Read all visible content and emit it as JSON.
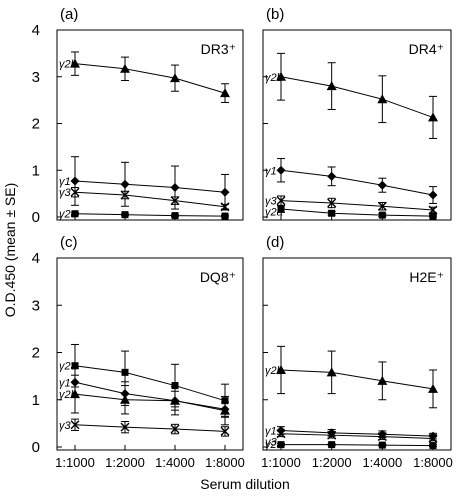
{
  "figure": {
    "ylabel": "O.D.450 (mean ± SE)",
    "xlabel": "Serum dilution"
  },
  "chart_data": [
    {
      "type": "line",
      "panel": "(a)",
      "title": "DR3⁺",
      "categories": [
        "1:1000",
        "1:2000",
        "1:4000",
        "1:8000"
      ],
      "ylim": [
        0,
        4
      ],
      "yticks": [
        "0",
        "1",
        "2",
        "3",
        "4"
      ],
      "xlabel": "Serum dilution",
      "ylabel": "O.D.450 (mean ± SE)",
      "series": [
        {
          "name": "γ2b",
          "marker": "triangle",
          "values": [
            3.28,
            3.17,
            2.97,
            2.65
          ],
          "errors": [
            0.25,
            0.25,
            0.28,
            0.2
          ]
        },
        {
          "name": "γ1",
          "marker": "diamond",
          "values": [
            0.77,
            0.7,
            0.63,
            0.53
          ],
          "errors": [
            0.52,
            0.47,
            0.46,
            0.38
          ]
        },
        {
          "name": "γ3",
          "marker": "x",
          "values": [
            0.53,
            0.47,
            0.35,
            0.22
          ],
          "errors": [
            0.1,
            0.08,
            0.08,
            0.05
          ]
        },
        {
          "name": "γ2a",
          "marker": "square",
          "values": [
            0.07,
            0.05,
            0.03,
            0.02
          ],
          "errors": [
            0.02,
            0.02,
            0.02,
            0.02
          ]
        }
      ]
    },
    {
      "type": "line",
      "panel": "(b)",
      "title": "DR4⁺",
      "categories": [
        "1:1000",
        "1:2000",
        "1:4000",
        "1:8000"
      ],
      "ylim": [
        0,
        4
      ],
      "yticks": [
        "0",
        "1",
        "2",
        "3",
        "4"
      ],
      "xlabel": "Serum dilution",
      "ylabel": "O.D.450 (mean ± SE)",
      "series": [
        {
          "name": "γ2b",
          "marker": "triangle",
          "values": [
            3.0,
            2.8,
            2.52,
            2.13
          ],
          "errors": [
            0.5,
            0.5,
            0.5,
            0.45
          ]
        },
        {
          "name": "γ1",
          "marker": "diamond",
          "values": [
            1.0,
            0.87,
            0.68,
            0.47
          ],
          "errors": [
            0.25,
            0.2,
            0.15,
            0.18
          ]
        },
        {
          "name": "γ3",
          "marker": "x",
          "values": [
            0.35,
            0.3,
            0.23,
            0.15
          ],
          "errors": [
            0.1,
            0.1,
            0.08,
            0.06
          ]
        },
        {
          "name": "γ2a",
          "marker": "square",
          "values": [
            0.17,
            0.08,
            0.04,
            0.02
          ],
          "errors": [
            0.07,
            0.04,
            0.03,
            0.02
          ]
        }
      ]
    },
    {
      "type": "line",
      "panel": "(c)",
      "title": "DQ8⁺",
      "categories": [
        "1:1000",
        "1:2000",
        "1:4000",
        "1:8000"
      ],
      "ylim": [
        0,
        4
      ],
      "yticks": [
        "0",
        "1",
        "2",
        "3",
        "4"
      ],
      "xlabel": "Serum dilution",
      "ylabel": "O.D.450 (mean ± SE)",
      "series": [
        {
          "name": "γ2a",
          "marker": "square",
          "values": [
            1.72,
            1.58,
            1.3,
            0.98
          ],
          "errors": [
            0.45,
            0.45,
            0.45,
            0.35
          ]
        },
        {
          "name": "γ1",
          "marker": "diamond",
          "values": [
            1.37,
            1.13,
            0.98,
            0.8
          ],
          "errors": [
            0.3,
            0.25,
            0.2,
            0.15
          ]
        },
        {
          "name": "γ2b",
          "marker": "triangle",
          "values": [
            1.12,
            1.0,
            0.98,
            0.77
          ],
          "errors": [
            0.4,
            0.3,
            0.3,
            0.3
          ]
        },
        {
          "name": "γ3",
          "marker": "x",
          "values": [
            0.47,
            0.42,
            0.38,
            0.33
          ],
          "errors": [
            0.12,
            0.12,
            0.1,
            0.1
          ]
        }
      ]
    },
    {
      "type": "line",
      "panel": "(d)",
      "title": "H2E⁺",
      "categories": [
        "1:1000",
        "1:2000",
        "1:4000",
        "1:8000"
      ],
      "ylim": [
        0,
        4
      ],
      "yticks": [
        "0",
        "1",
        "2",
        "3",
        "4"
      ],
      "xlabel": "Serum dilution",
      "ylabel": "O.D.450 (mean ± SE)",
      "series": [
        {
          "name": "γ2b",
          "marker": "triangle",
          "values": [
            1.63,
            1.58,
            1.4,
            1.23
          ],
          "errors": [
            0.5,
            0.45,
            0.4,
            0.4
          ]
        },
        {
          "name": "γ1",
          "marker": "diamond",
          "values": [
            0.35,
            0.3,
            0.27,
            0.23
          ],
          "errors": [
            0.08,
            0.07,
            0.07,
            0.06
          ]
        },
        {
          "name": "γ3",
          "marker": "x",
          "values": [
            0.28,
            0.25,
            0.22,
            0.18
          ],
          "errors": [
            0.06,
            0.06,
            0.06,
            0.05
          ]
        },
        {
          "name": "γ2a",
          "marker": "square",
          "values": [
            0.05,
            0.05,
            0.04,
            0.03
          ],
          "errors": [
            0.02,
            0.02,
            0.02,
            0.02
          ]
        }
      ]
    }
  ]
}
